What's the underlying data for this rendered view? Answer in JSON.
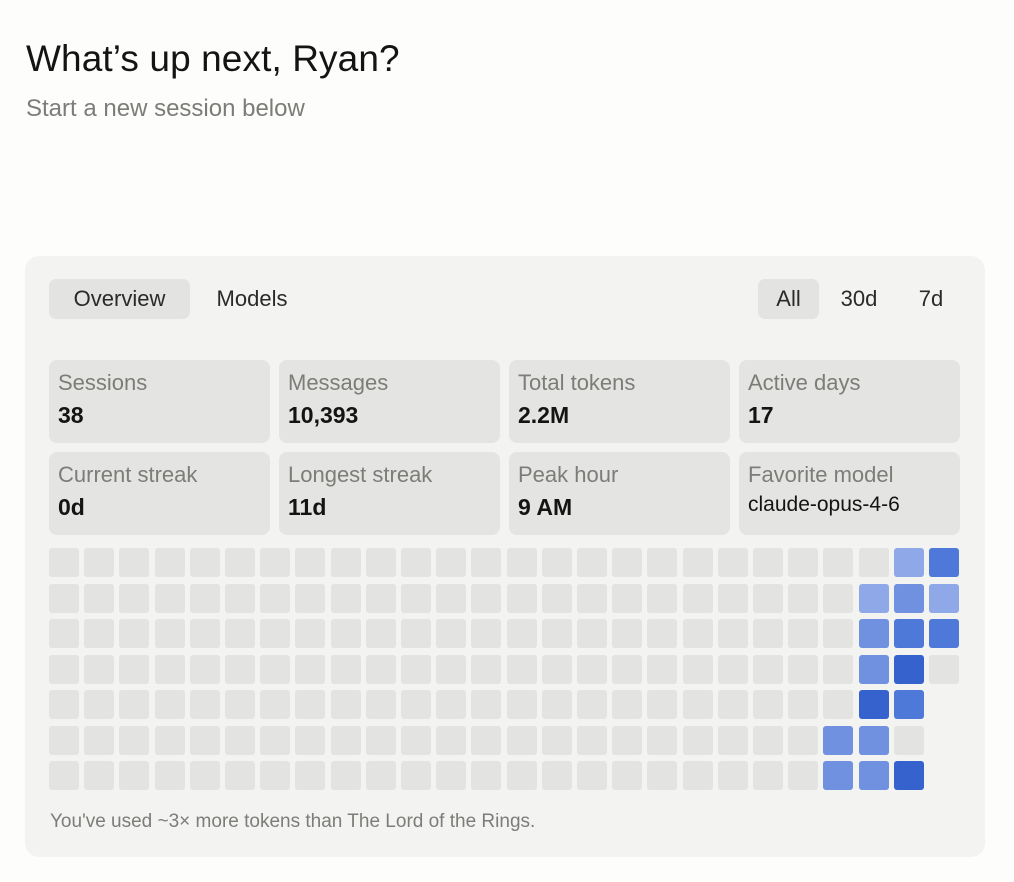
{
  "header": {
    "title": "What’s up next, Ryan?",
    "subtitle": "Start a new session below"
  },
  "card": {
    "tabs": [
      {
        "label": "Overview",
        "active": true
      },
      {
        "label": "Models",
        "active": false
      }
    ],
    "ranges": [
      {
        "label": "All",
        "active": true
      },
      {
        "label": "30d",
        "active": false
      },
      {
        "label": "7d",
        "active": false
      }
    ],
    "stats": [
      {
        "label": "Sessions",
        "value": "38"
      },
      {
        "label": "Messages",
        "value": "10,393"
      },
      {
        "label": "Total tokens",
        "value": "2.2M"
      },
      {
        "label": "Active days",
        "value": "17"
      },
      {
        "label": "Current streak",
        "value": "0d"
      },
      {
        "label": "Longest streak",
        "value": "11d"
      },
      {
        "label": "Peak hour",
        "value": "9 AM"
      },
      {
        "label": "Favorite model",
        "value": "claude-opus-4-6"
      }
    ],
    "activity": {
      "columns": 26,
      "rows": 7,
      "levels": [
        0,
        1,
        2,
        3,
        4
      ],
      "level_colors": [
        "#e3e3e1",
        "#8fa9e8",
        "#6f91e0",
        "#4f79d9",
        "#3562cc"
      ],
      "active_cells": [
        {
          "col": 24,
          "row": 0,
          "level": 1
        },
        {
          "col": 25,
          "row": 0,
          "level": 3
        },
        {
          "col": 23,
          "row": 1,
          "level": 1
        },
        {
          "col": 24,
          "row": 1,
          "level": 2
        },
        {
          "col": 25,
          "row": 1,
          "level": 1
        },
        {
          "col": 23,
          "row": 2,
          "level": 2
        },
        {
          "col": 24,
          "row": 2,
          "level": 3
        },
        {
          "col": 25,
          "row": 2,
          "level": 3
        },
        {
          "col": 23,
          "row": 3,
          "level": 2
        },
        {
          "col": 24,
          "row": 3,
          "level": 4
        },
        {
          "col": 23,
          "row": 4,
          "level": 4
        },
        {
          "col": 24,
          "row": 4,
          "level": 3
        },
        {
          "col": 22,
          "row": 5,
          "level": 2
        },
        {
          "col": 23,
          "row": 5,
          "level": 2
        },
        {
          "col": 22,
          "row": 6,
          "level": 2
        },
        {
          "col": 23,
          "row": 6,
          "level": 2
        },
        {
          "col": 24,
          "row": 6,
          "level": 4
        }
      ],
      "blank_cells": [
        {
          "col": 25,
          "row": 4
        },
        {
          "col": 25,
          "row": 5
        },
        {
          "col": 25,
          "row": 6
        }
      ]
    },
    "footnote": "You've used ~3× more tokens than The Lord of the Rings."
  }
}
